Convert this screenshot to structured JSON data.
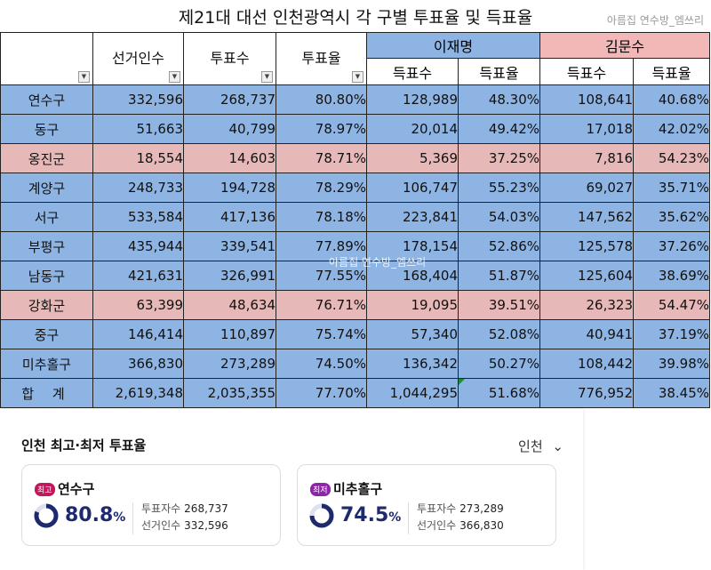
{
  "title": "제21대 대선 인천광역시 각 구별 투표율 및 득표율",
  "watermark": "아름집 연수방_엠쓰리",
  "columns": {
    "electors": "선거인수",
    "voters": "투표수",
    "turnout": "투표율",
    "vote_count": "득표수",
    "vote_rate": "득표율",
    "filter_icon": "dropdown-arrow"
  },
  "candidates": [
    {
      "name": "이재명",
      "color": "#8eb4e3"
    },
    {
      "name": "김문수",
      "color": "#f2b8b8"
    }
  ],
  "rows": [
    {
      "district": "연수구",
      "electors": "332,596",
      "voters": "268,737",
      "turnout": "80.80%",
      "lee_votes": "128,989",
      "lee_rate": "48.30%",
      "kim_votes": "108,641",
      "kim_rate": "40.68%",
      "winner": "lee"
    },
    {
      "district": "동구",
      "electors": "51,663",
      "voters": "40,799",
      "turnout": "78.97%",
      "lee_votes": "20,014",
      "lee_rate": "49.42%",
      "kim_votes": "17,018",
      "kim_rate": "42.02%",
      "winner": "lee"
    },
    {
      "district": "옹진군",
      "electors": "18,554",
      "voters": "14,603",
      "turnout": "78.71%",
      "lee_votes": "5,369",
      "lee_rate": "37.25%",
      "kim_votes": "7,816",
      "kim_rate": "54.23%",
      "winner": "kim"
    },
    {
      "district": "계양구",
      "electors": "248,733",
      "voters": "194,728",
      "turnout": "78.29%",
      "lee_votes": "106,747",
      "lee_rate": "55.23%",
      "kim_votes": "69,027",
      "kim_rate": "35.71%",
      "winner": "lee"
    },
    {
      "district": "서구",
      "electors": "533,584",
      "voters": "417,136",
      "turnout": "78.18%",
      "lee_votes": "223,841",
      "lee_rate": "54.03%",
      "kim_votes": "147,562",
      "kim_rate": "35.62%",
      "winner": "lee"
    },
    {
      "district": "부평구",
      "electors": "435,944",
      "voters": "339,541",
      "turnout": "77.89%",
      "lee_votes": "178,154",
      "lee_rate": "52.86%",
      "kim_votes": "125,578",
      "kim_rate": "37.26%",
      "winner": "lee"
    },
    {
      "district": "남동구",
      "electors": "421,631",
      "voters": "326,991",
      "turnout": "77.55%",
      "lee_votes": "168,404",
      "lee_rate": "51.87%",
      "kim_votes": "125,604",
      "kim_rate": "38.69%",
      "winner": "lee"
    },
    {
      "district": "강화군",
      "electors": "63,399",
      "voters": "48,634",
      "turnout": "76.71%",
      "lee_votes": "19,095",
      "lee_rate": "39.51%",
      "kim_votes": "26,323",
      "kim_rate": "54.47%",
      "winner": "kim"
    },
    {
      "district": "중구",
      "electors": "146,414",
      "voters": "110,897",
      "turnout": "75.74%",
      "lee_votes": "57,340",
      "lee_rate": "52.08%",
      "kim_votes": "40,941",
      "kim_rate": "37.19%",
      "winner": "lee"
    },
    {
      "district": "미추홀구",
      "electors": "366,830",
      "voters": "273,289",
      "turnout": "74.50%",
      "lee_votes": "136,342",
      "lee_rate": "50.27%",
      "kim_votes": "108,442",
      "kim_rate": "39.98%",
      "winner": "lee"
    }
  ],
  "total": {
    "district": "합 계",
    "electors": "2,619,348",
    "voters": "2,035,355",
    "turnout": "77.70%",
    "lee_votes": "1,044,295",
    "lee_rate": "51.68%",
    "kim_votes": "776,952",
    "kim_rate": "38.45%"
  },
  "summary": {
    "title": "인천 최고·최저 투표율",
    "region": "인천",
    "region_icon": "chevron-down",
    "highest": {
      "badge": "최고",
      "district": "연수구",
      "rate": "80.8",
      "rate_value": 80.8,
      "unit": "%",
      "voters_label": "투표자수",
      "voters": "268,737",
      "electors_label": "선거인수",
      "electors": "332,596"
    },
    "lowest": {
      "badge": "최저",
      "district": "미추홀구",
      "rate": "74.5",
      "rate_value": 74.5,
      "unit": "%",
      "voters_label": "투표자수",
      "voters": "273,289",
      "electors_label": "선거인수",
      "electors": "366,830"
    }
  }
}
